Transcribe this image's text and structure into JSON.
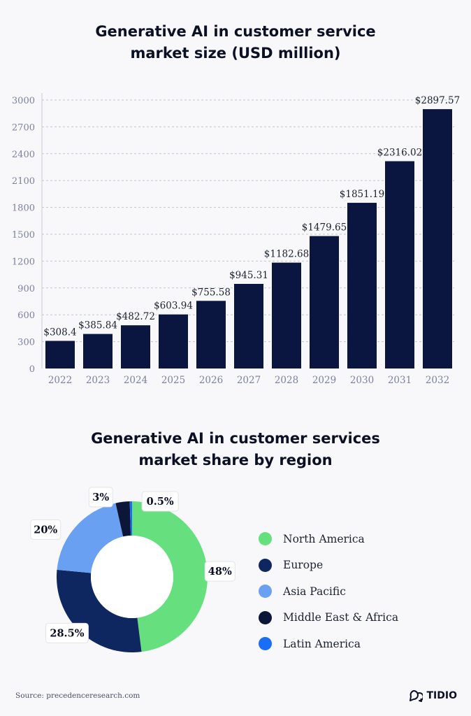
{
  "chart_data": [
    {
      "type": "bar",
      "title_lines": [
        "Generative AI in customer service",
        "market size (USD million)"
      ],
      "categories": [
        "2022",
        "2023",
        "2024",
        "2025",
        "2026",
        "2027",
        "2028",
        "2029",
        "2030",
        "2031",
        "2032"
      ],
      "values": [
        308.4,
        385.84,
        482.72,
        603.94,
        755.58,
        945.31,
        1182.68,
        1479.65,
        1851.19,
        2316.02,
        2897.57
      ],
      "value_labels": [
        "$308.4",
        "$385.84",
        "$482.72",
        "$603.94",
        "$755.58",
        "$945.31",
        "$1182.68",
        "$1479.65",
        "$1851.19",
        "$2316.02",
        "$2897.57"
      ],
      "yticks": [
        0,
        300,
        600,
        900,
        1200,
        1500,
        1800,
        2100,
        2400,
        2700,
        3000
      ],
      "ylim": [
        0,
        3000
      ],
      "grid": true,
      "bar_color": "#0b1640"
    },
    {
      "type": "pie",
      "title_lines": [
        "Generative AI in customer services",
        "market share by region"
      ],
      "slices": [
        {
          "name": "North America",
          "value": 48,
          "label": "48%",
          "color": "#66e07f"
        },
        {
          "name": "Europe",
          "value": 28.5,
          "label": "28.5%",
          "color": "#0e2760"
        },
        {
          "name": "Asia Pacific",
          "value": 20,
          "label": "20%",
          "color": "#6aa0f2"
        },
        {
          "name": "Middle East & Africa",
          "value": 3,
          "label": "3%",
          "color": "#0b1638"
        },
        {
          "name": "Latin America",
          "value": 0.5,
          "label": "0.5%",
          "color": "#1a6ef5"
        }
      ],
      "legend_position": "right"
    }
  ],
  "footer": {
    "source": "Source: precedenceresearch.com",
    "brand": "TIDIO"
  }
}
